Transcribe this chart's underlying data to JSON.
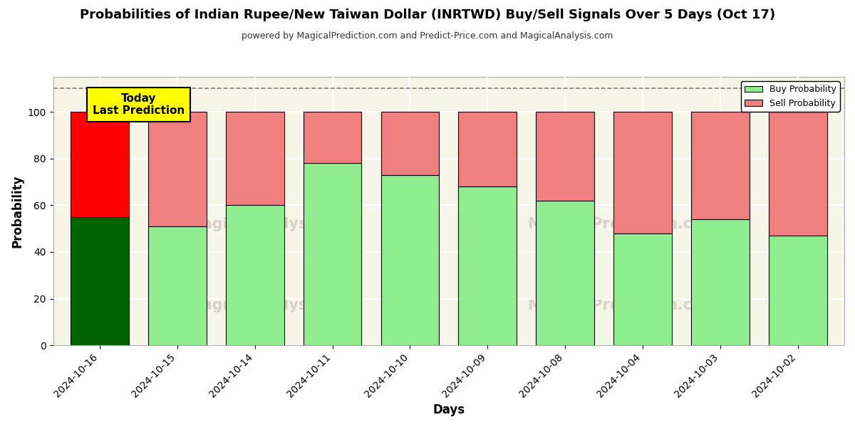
{
  "title": "Probabilities of Indian Rupee/New Taiwan Dollar (INRTWD) Buy/Sell Signals Over 5 Days (Oct 17)",
  "subtitle": "powered by MagicalPrediction.com and Predict-Price.com and MagicalAnalysis.com",
  "xlabel": "Days",
  "ylabel": "Probability",
  "categories": [
    "2024-10-16",
    "2024-10-15",
    "2024-10-14",
    "2024-10-11",
    "2024-10-10",
    "2024-10-09",
    "2024-10-08",
    "2024-10-04",
    "2024-10-03",
    "2024-10-02"
  ],
  "buy_values": [
    55,
    51,
    60,
    78,
    73,
    68,
    62,
    48,
    54,
    47
  ],
  "sell_values": [
    45,
    49,
    40,
    22,
    27,
    32,
    38,
    52,
    46,
    53
  ],
  "buy_color_first": "#006400",
  "sell_color_first": "#ff0000",
  "buy_color_rest": "#90ee90",
  "sell_color_rest": "#f08080",
  "bar_edge_color": "#000000",
  "ylim": [
    0,
    115
  ],
  "yticks": [
    0,
    20,
    40,
    60,
    80,
    100
  ],
  "dashed_line_y": 110,
  "today_box_text": "Today\nLast Prediction",
  "today_box_facecolor": "#ffff00",
  "today_box_edgecolor": "#000000",
  "legend_buy_color": "#90ee90",
  "legend_sell_color": "#f08080",
  "bg_color": "#ffffff",
  "plot_bg_color": "#f5f5e8",
  "grid_color": "#ffffff",
  "figure_size": [
    12,
    6
  ]
}
